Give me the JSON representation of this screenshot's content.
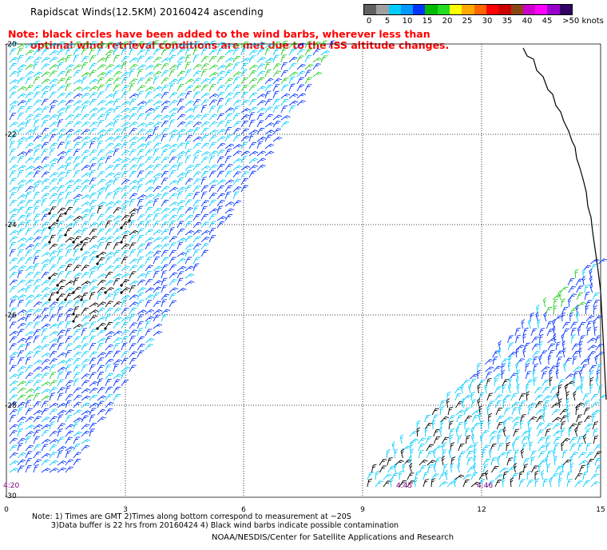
{
  "title": "Rapidscat Winds(12.5KM) 20160424 ascending",
  "note_line1": "Note: black circles have been added to the wind barbs, wherever less than",
  "note_line2": "optimal wind retrieval conditions are met due to the ISS altitude changes.",
  "colorbar": {
    "colors": [
      "#606060",
      "#a0a0a0",
      "#00ccff",
      "#0099ff",
      "#0033ff",
      "#00bb00",
      "#22dd22",
      "#ffff00",
      "#ffaa00",
      "#ff6600",
      "#ff0000",
      "#cc0000",
      "#8b4513",
      "#cc00cc",
      "#ff00ff",
      "#9900cc",
      "#330066"
    ],
    "labels": [
      "0",
      "5",
      "10",
      "15",
      "20",
      "25",
      "30",
      "35",
      "40",
      "45",
      ">50 knots"
    ]
  },
  "map": {
    "lat_labels": [
      "-20",
      "-22",
      "-24",
      "-26",
      "-28",
      "-30"
    ],
    "lon_labels": [
      "0",
      "3",
      "6",
      "9",
      "12",
      "15"
    ],
    "pass_times": [
      "4:20",
      "4:45",
      "4:46"
    ],
    "barb_colors": {
      "black": "#000000",
      "cyan": "#00ccff",
      "blue": "#0033ff",
      "green": "#22cc22"
    }
  },
  "footnote_line1": "Note: 1) Times are GMT 2)Times along bottom correspond to measurement at ~20S",
  "footnote_line2": "3)Data buffer is 22 hrs from 20160424 4) Black wind barbs indicate possible contamination",
  "credit": "NOAA/NESDIS/Center for Satellite Applications and Research"
}
